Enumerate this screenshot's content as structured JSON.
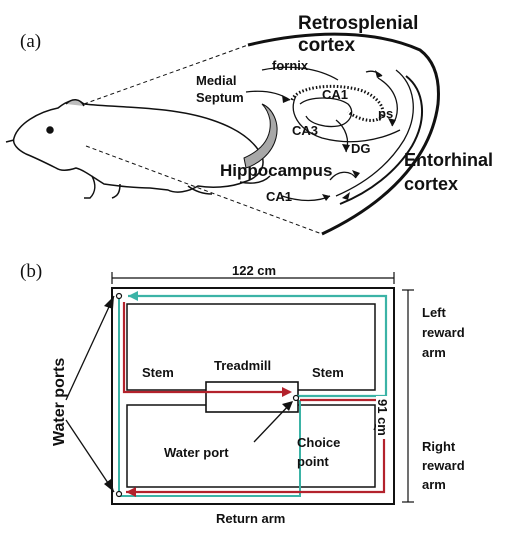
{
  "panel_a": {
    "label": "(a)",
    "regions": {
      "retrosplenial": [
        "Retrosplenial",
        "cortex"
      ],
      "fornix": "fornix",
      "medial_septum": [
        "Medial",
        "Septum"
      ],
      "ca1_top": "CA1",
      "ps": "ps",
      "ca3": "CA3",
      "dg": "DG",
      "hippocampus": "Hippocampus",
      "entorhinal": [
        "Entorhinal",
        "cortex"
      ],
      "ca1_bottom": "CA1"
    }
  },
  "panel_b": {
    "label": "(b)",
    "width_label": "122 cm",
    "height_label": "91 cm",
    "left_reward_arm": [
      "Left",
      "reward",
      "arm"
    ],
    "right_reward_arm": [
      "Right",
      "reward",
      "arm"
    ],
    "stem_left": "Stem",
    "stem_right": "Stem",
    "treadmill": "Treadmill",
    "water_port": "Water port",
    "water_ports": "Water ports",
    "choice_point": [
      "Choice",
      "point"
    ],
    "return_arm": "Return arm",
    "colors": {
      "left_path": "#3bb3a6",
      "right_path": "#b3222c"
    }
  }
}
